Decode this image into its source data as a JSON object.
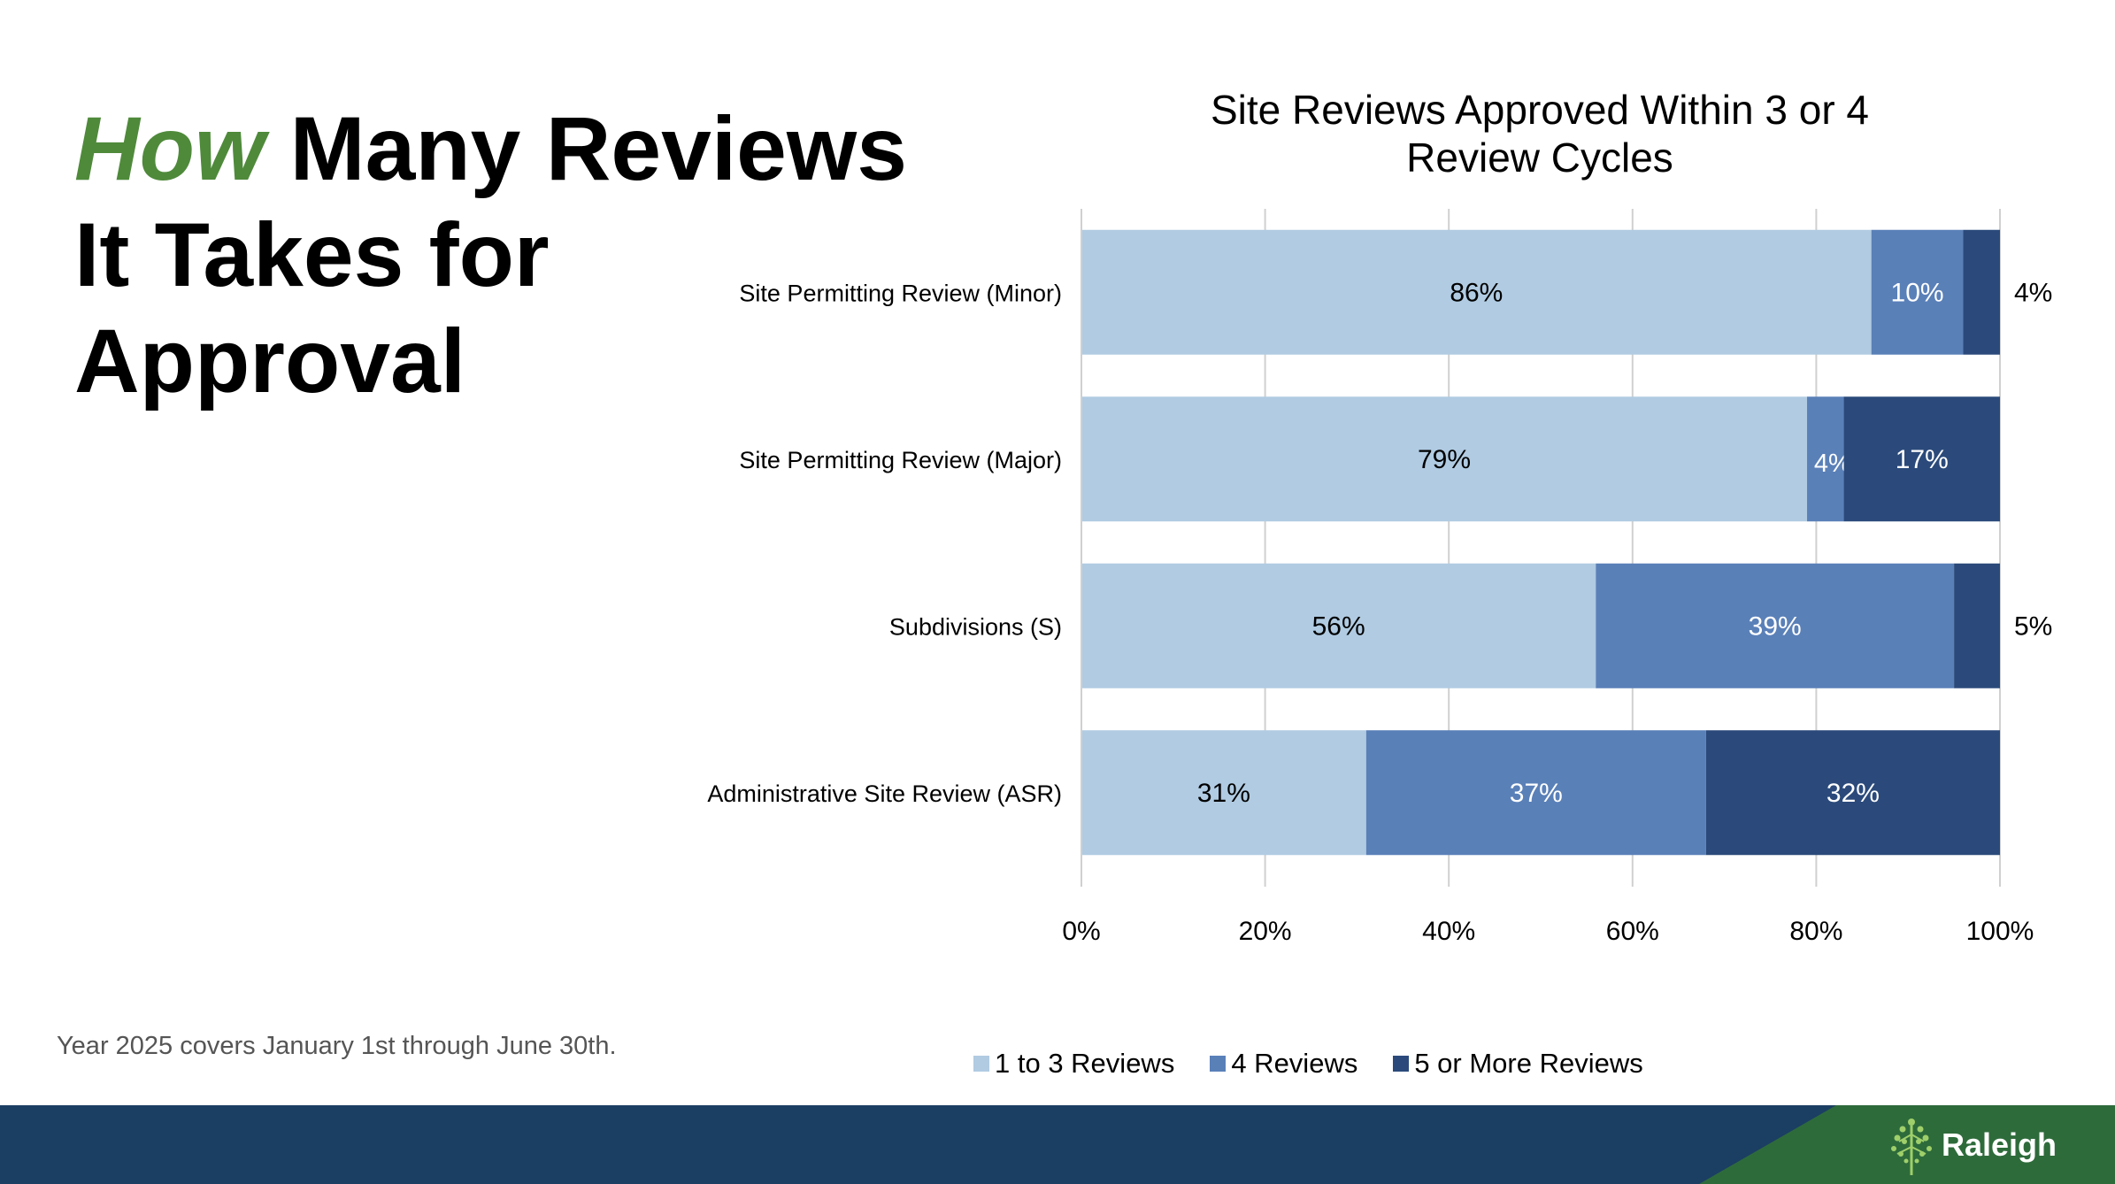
{
  "slide": {
    "headline_accent": "How",
    "headline_line1_rest": " Many Reviews",
    "headline_line2": "It Takes for",
    "headline_line3": "Approval",
    "footnote": "Year 2025 covers January 1st through June 30th.",
    "logo_text": "Raleigh",
    "colors": {
      "accent_green": "#4f8a3b",
      "footer_navy": "#1b3e63",
      "footer_green": "#2e6b3b"
    }
  },
  "chart_data": {
    "type": "bar",
    "orientation": "horizontal",
    "stacked": true,
    "title_lines": [
      "Site Reviews Approved Within 3 or 4",
      "Review Cycles"
    ],
    "categories": [
      "Site Permitting Review (Minor)",
      "Site Permitting Review (Major)",
      "Subdivisions (S)",
      "Administrative Site Review (ASR)"
    ],
    "series": [
      {
        "name": "1 to 3 Reviews",
        "color": "#b0cbe2",
        "label_color": "#000000",
        "values": [
          86,
          79,
          56,
          31
        ]
      },
      {
        "name": "4 Reviews",
        "color": "#5a80b8",
        "label_color": "#ffffff",
        "values": [
          10,
          4,
          39,
          37
        ]
      },
      {
        "name": "5 or More Reviews",
        "color": "#2b4a7b",
        "label_color": "#ffffff",
        "values": [
          4,
          17,
          5,
          32
        ]
      }
    ],
    "value_suffix": "%",
    "xlim": [
      0,
      100
    ],
    "xticks": [
      "0%",
      "20%",
      "40%",
      "60%",
      "80%",
      "100%"
    ],
    "grid": true,
    "legend_position": "bottom"
  }
}
